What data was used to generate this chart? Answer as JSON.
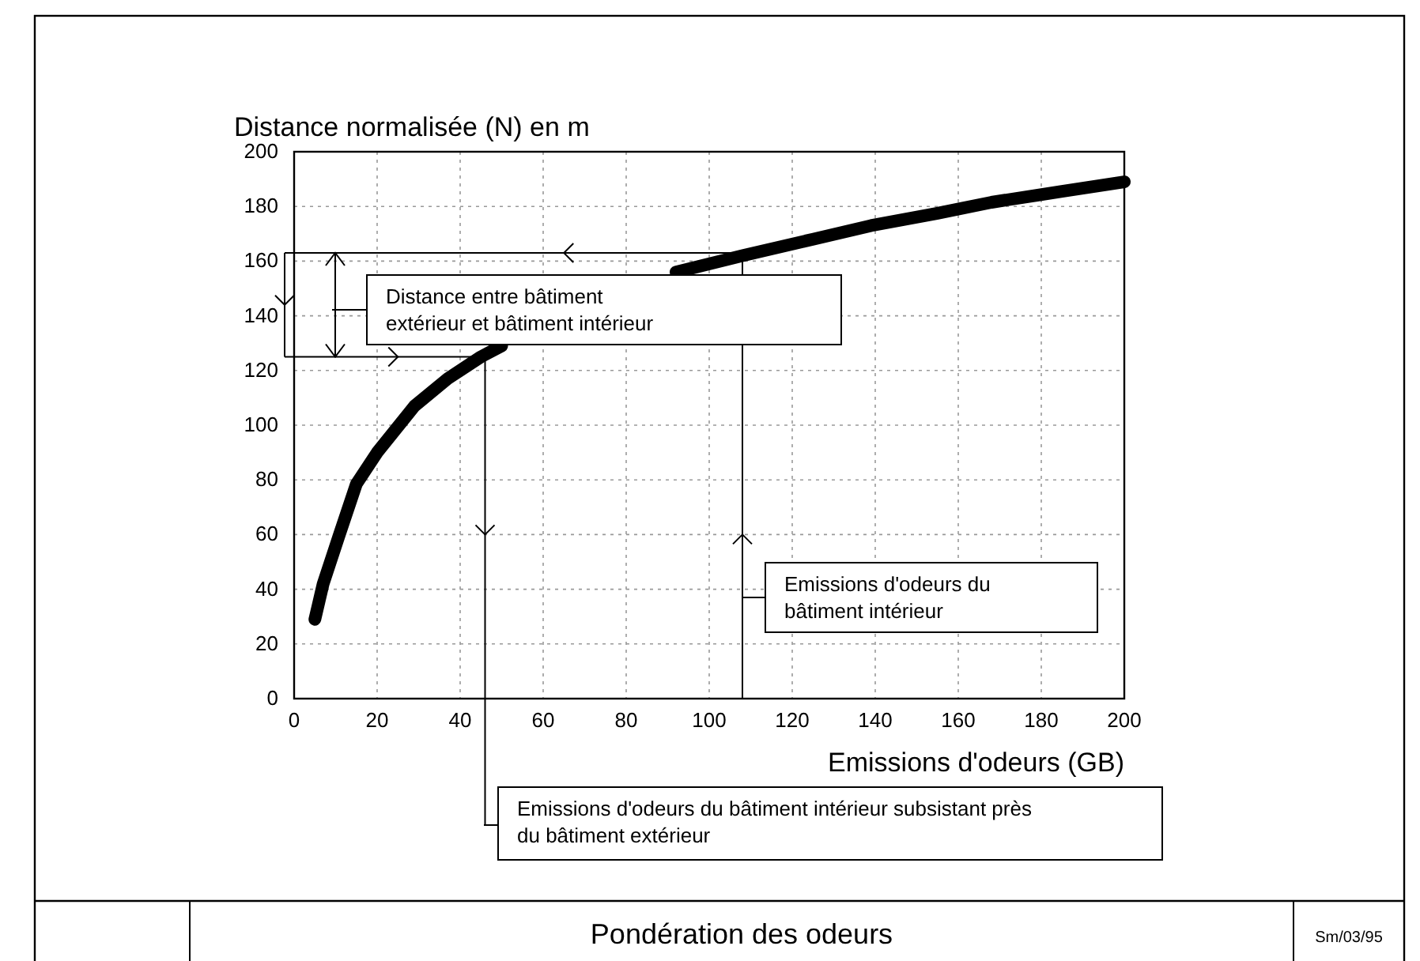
{
  "chart_data": {
    "type": "line",
    "title": "Pondération des odeurs",
    "xlabel": "Emissions d'odeurs (GB)",
    "ylabel": "Distance normalisée (N) en m",
    "x": [
      5,
      7,
      10.7,
      15,
      20,
      29,
      37,
      45,
      50,
      62,
      75,
      92,
      108,
      125,
      139,
      155,
      168,
      185,
      200
    ],
    "series": [
      {
        "color": "#000000",
        "values": [
          29,
          42,
          59,
          78.5,
          90,
          107,
          117,
          125,
          129,
          null,
          null,
          156,
          162,
          168,
          173,
          177.5,
          181.5,
          185.5,
          189
        ]
      }
    ],
    "xlim": [
      0,
      200
    ],
    "xticks": [
      0,
      20,
      40,
      60,
      80,
      100,
      120,
      140,
      160,
      180,
      200
    ],
    "ylim": [
      0,
      200
    ],
    "yticks": [
      0,
      20,
      40,
      60,
      80,
      100,
      120,
      140,
      160,
      180,
      200
    ],
    "grid": true,
    "marker": "none",
    "line_style": "solid",
    "ref_lines": [
      {
        "axis": "x",
        "value": 46
      },
      {
        "axis": "x",
        "value": 108
      },
      {
        "axis": "y",
        "value": 125
      },
      {
        "axis": "y",
        "value": 163
      }
    ],
    "annotations": [
      "Distance entre bâtiment\nextérieur et bâtiment intérieur",
      "Emissions d'odeurs du\nbâtiment intérieur",
      "Emissions d'odeurs du bâtiment intérieur subsistant près\ndu bâtiment extérieur",
      "Sm/03/95"
    ]
  }
}
